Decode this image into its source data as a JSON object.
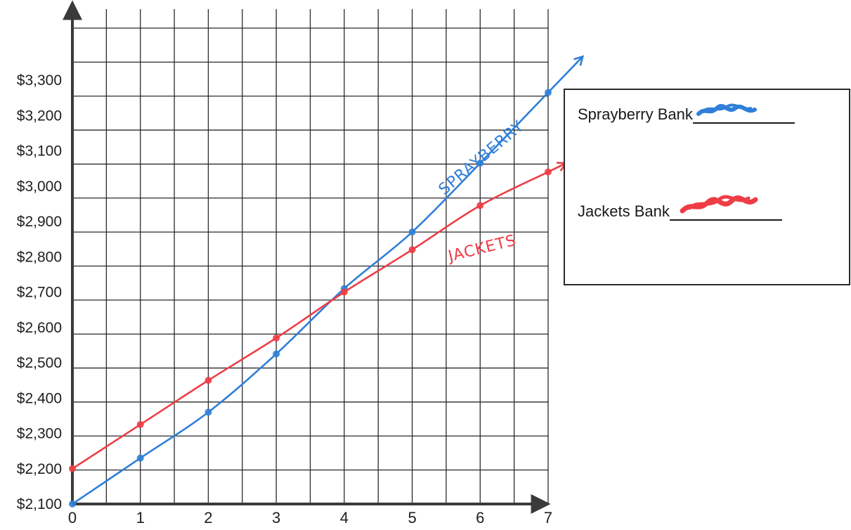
{
  "chart_data": {
    "type": "line",
    "x": [
      0,
      1,
      2,
      3,
      4,
      5,
      6,
      7
    ],
    "x_ticks": [
      "0",
      "1",
      "2",
      "3",
      "4",
      "5",
      "6",
      "7"
    ],
    "y_ticks": [
      "$2,100",
      "$2,200",
      "$2,300",
      "$2,400",
      "$2,500",
      "$2,600",
      "$2,700",
      "$2,800",
      "$2,900",
      "$3,000",
      "$3,100",
      "$3,200",
      "$3,300"
    ],
    "ylim": [
      2100,
      3300
    ],
    "xlim": [
      0,
      7
    ],
    "grid": true,
    "legend_position": "right",
    "series": [
      {
        "name": "Sprayberry Bank",
        "line_label": "SPRAYBERRY",
        "color": "#2f7fd8",
        "values": [
          2100,
          2230,
          2360,
          2525,
          2710,
          2870,
          3065,
          3265
        ]
      },
      {
        "name": "Jackets Bank",
        "line_label": "JACKETS",
        "color": "#ef3d46",
        "values": [
          2200,
          2325,
          2450,
          2570,
          2700,
          2820,
          2945,
          3040
        ]
      }
    ],
    "title": "",
    "xlabel": "",
    "ylabel": ""
  },
  "legend": {
    "sprayberry_label": "Sprayberry Bank",
    "jackets_label": "Jackets Bank",
    "sprayberry_color": "#2f7fd8",
    "jackets_color": "#ef3d46"
  }
}
